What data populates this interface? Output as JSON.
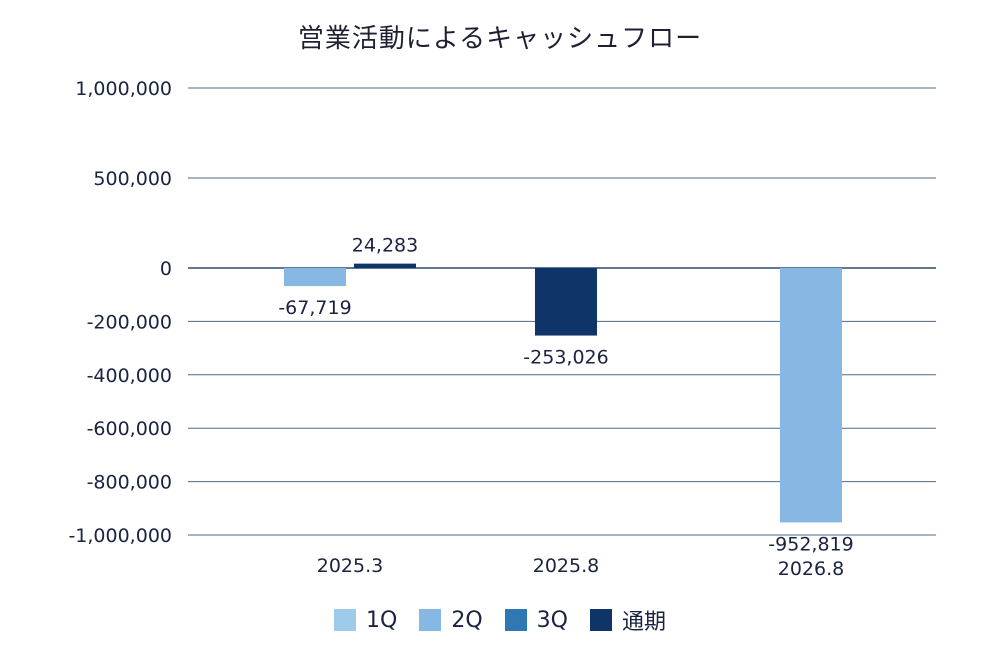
{
  "chart_data": {
    "type": "bar",
    "title": "営業活動によるキャッシュフロー",
    "categories": [
      "2025.3",
      "2025.8",
      "2026.8"
    ],
    "series": [
      {
        "name": "1Q",
        "color": "#9fcbea",
        "values": [
          null,
          null,
          null
        ]
      },
      {
        "name": "2Q",
        "color": "#86b8e3",
        "values": [
          -67719,
          null,
          -952819
        ]
      },
      {
        "name": "3Q",
        "color": "#2f78b4",
        "values": [
          null,
          null,
          null
        ]
      },
      {
        "name": "通期",
        "color": "#0e3468",
        "values": [
          24283,
          -253026,
          null
        ]
      }
    ],
    "data_labels": [
      "-67,719",
      "24,283",
      "-253,026",
      "-952,819"
    ],
    "ylim": [
      -1000000,
      1000000
    ],
    "yticks": [
      1000000,
      500000,
      0,
      -200000,
      -400000,
      -600000,
      -800000,
      -1000000
    ],
    "ytick_labels": [
      "1,000,000",
      "500,000",
      "0",
      "-200,000",
      "-400,000",
      "-600,000",
      "-800,000",
      "-1,000,000"
    ],
    "grid": true,
    "legend_position": "bottom"
  }
}
